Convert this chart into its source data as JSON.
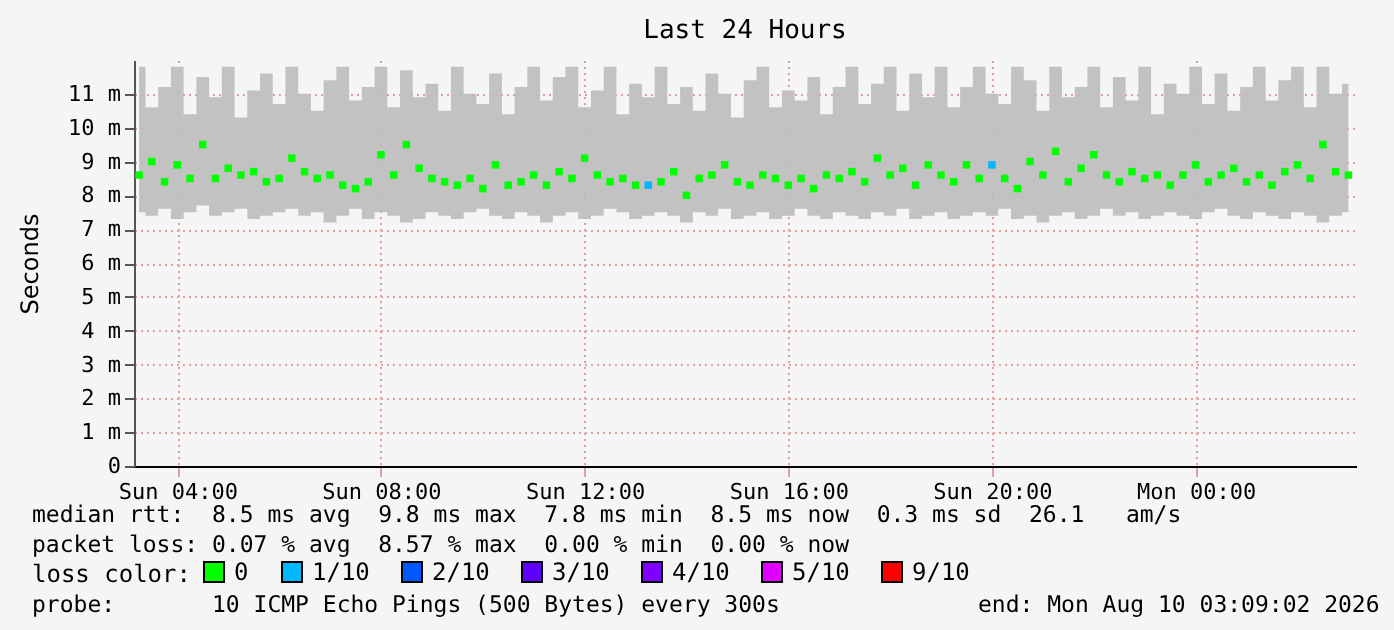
{
  "chart_data": {
    "type": "scatter",
    "title": "Last 24 Hours",
    "ylabel": "Seconds",
    "legend_title": "loss color:",
    "legend": "bottom",
    "grid": true,
    "marker": "square",
    "xlim": [
      "2026-08-09T03:09",
      "2026-08-10T03:09"
    ],
    "xticks": [
      {
        "value": "2026-08-09T04:00",
        "label": "Sun 04:00"
      },
      {
        "value": "2026-08-09T08:00",
        "label": "Sun 08:00"
      },
      {
        "value": "2026-08-09T12:00",
        "label": "Sun 12:00"
      },
      {
        "value": "2026-08-09T16:00",
        "label": "Sun 16:00"
      },
      {
        "value": "2026-08-09T20:00",
        "label": "Sun 20:00"
      },
      {
        "value": "2026-08-10T00:00",
        "label": "Mon 00:00"
      }
    ],
    "ylim": [
      0,
      12
    ],
    "yticks": [
      0,
      {
        "value": 1,
        "label": "1 m"
      },
      {
        "value": 2,
        "label": "2 m"
      },
      {
        "value": 3,
        "label": "3 m"
      },
      {
        "value": 4,
        "label": "4 m"
      },
      {
        "value": 5,
        "label": "5 m"
      },
      {
        "value": 6,
        "label": "6 m"
      },
      {
        "value": 7,
        "label": "7 m"
      },
      {
        "value": 8,
        "label": "8 m"
      },
      {
        "value": 9,
        "label": "9 m"
      },
      {
        "value": 10,
        "label": "10 m"
      },
      {
        "value": 11,
        "label": "11 m"
      }
    ],
    "x": [
      "2026-08-09T03:15",
      "2026-08-09T03:30",
      "2026-08-09T03:45",
      "2026-08-09T04:00",
      "2026-08-09T04:15",
      "2026-08-09T04:30",
      "2026-08-09T04:45",
      "2026-08-09T05:00",
      "2026-08-09T05:15",
      "2026-08-09T05:30",
      "2026-08-09T05:45",
      "2026-08-09T06:00",
      "2026-08-09T06:15",
      "2026-08-09T06:30",
      "2026-08-09T06:45",
      "2026-08-09T07:00",
      "2026-08-09T07:15",
      "2026-08-09T07:30",
      "2026-08-09T07:45",
      "2026-08-09T08:00",
      "2026-08-09T08:15",
      "2026-08-09T08:30",
      "2026-08-09T08:45",
      "2026-08-09T09:00",
      "2026-08-09T09:15",
      "2026-08-09T09:30",
      "2026-08-09T09:45",
      "2026-08-09T10:00",
      "2026-08-09T10:15",
      "2026-08-09T10:30",
      "2026-08-09T10:45",
      "2026-08-09T11:00",
      "2026-08-09T11:15",
      "2026-08-09T11:30",
      "2026-08-09T11:45",
      "2026-08-09T12:00",
      "2026-08-09T12:15",
      "2026-08-09T12:30",
      "2026-08-09T12:45",
      "2026-08-09T13:00",
      "2026-08-09T13:15",
      "2026-08-09T13:30",
      "2026-08-09T13:45",
      "2026-08-09T14:00",
      "2026-08-09T14:15",
      "2026-08-09T14:30",
      "2026-08-09T14:45",
      "2026-08-09T15:00",
      "2026-08-09T15:15",
      "2026-08-09T15:30",
      "2026-08-09T15:45",
      "2026-08-09T16:00",
      "2026-08-09T16:15",
      "2026-08-09T16:30",
      "2026-08-09T16:45",
      "2026-08-09T17:00",
      "2026-08-09T17:15",
      "2026-08-09T17:30",
      "2026-08-09T17:45",
      "2026-08-09T18:00",
      "2026-08-09T18:15",
      "2026-08-09T18:30",
      "2026-08-09T18:45",
      "2026-08-09T19:00",
      "2026-08-09T19:15",
      "2026-08-09T19:30",
      "2026-08-09T19:45",
      "2026-08-09T20:00",
      "2026-08-09T20:15",
      "2026-08-09T20:30",
      "2026-08-09T20:45",
      "2026-08-09T21:00",
      "2026-08-09T21:15",
      "2026-08-09T21:30",
      "2026-08-09T21:45",
      "2026-08-09T22:00",
      "2026-08-09T22:15",
      "2026-08-09T22:30",
      "2026-08-09T22:45",
      "2026-08-09T23:00",
      "2026-08-09T23:15",
      "2026-08-09T23:30",
      "2026-08-09T23:45",
      "2026-08-10T00:00",
      "2026-08-10T00:15",
      "2026-08-10T00:30",
      "2026-08-10T00:45",
      "2026-08-10T01:00",
      "2026-08-10T01:15",
      "2026-08-10T01:30",
      "2026-08-10T01:45",
      "2026-08-10T02:00",
      "2026-08-10T02:15",
      "2026-08-10T02:30",
      "2026-08-10T02:45",
      "2026-08-10T03:00"
    ],
    "series": [
      {
        "name": "0",
        "color": "#00ff00",
        "values": [
          8.6,
          9.0,
          8.4,
          8.9,
          8.5,
          9.5,
          8.5,
          8.8,
          8.6,
          8.7,
          8.4,
          8.5,
          9.1,
          8.7,
          8.5,
          8.6,
          8.3,
          8.2,
          8.4,
          9.2,
          8.6,
          9.5,
          8.8,
          8.5,
          8.4,
          8.3,
          8.5,
          8.2,
          8.9,
          8.3,
          8.4,
          8.6,
          8.3,
          8.7,
          8.5,
          9.1,
          8.6,
          8.4,
          8.5,
          8.3,
          null,
          8.4,
          8.7,
          8.0,
          8.5,
          8.6,
          8.9,
          8.4,
          8.3,
          8.6,
          8.5,
          8.3,
          8.5,
          8.2,
          8.6,
          8.5,
          8.7,
          8.4,
          9.1,
          8.6,
          8.8,
          8.3,
          8.9,
          8.6,
          8.4,
          8.9,
          8.5,
          null,
          8.5,
          8.2,
          9.0,
          8.6,
          9.3,
          8.4,
          8.8,
          9.2,
          8.6,
          8.4,
          8.7,
          8.5,
          8.6,
          8.3,
          8.6,
          8.9,
          8.4,
          8.6,
          8.8,
          8.4,
          8.6,
          8.3,
          8.7,
          8.9,
          8.5,
          9.5,
          8.7,
          8.6
        ],
        "lower": [
          7.5,
          7.4,
          7.6,
          7.3,
          7.5,
          7.7,
          7.4,
          7.5,
          7.6,
          7.3,
          7.4,
          7.5,
          7.6,
          7.4,
          7.5,
          7.2,
          7.4,
          7.6,
          7.3,
          7.5,
          7.4,
          7.2,
          7.3,
          7.5,
          7.4,
          7.3,
          7.5,
          7.6,
          7.4,
          7.3,
          7.5,
          7.4,
          7.2,
          7.4,
          7.5,
          7.3,
          7.4,
          7.6,
          7.5,
          7.3,
          7.4,
          7.5,
          7.4,
          7.2,
          7.5,
          7.4,
          7.6,
          7.3,
          7.4,
          7.5,
          7.3,
          7.4,
          7.6,
          7.4,
          7.3,
          7.5,
          7.4,
          7.3,
          7.5,
          7.4,
          7.6,
          7.3,
          7.4,
          7.5,
          7.3,
          7.4,
          7.5,
          7.4,
          7.6,
          7.3,
          7.4,
          7.2,
          7.4,
          7.5,
          7.3,
          7.4,
          7.6,
          7.4,
          7.5,
          7.3,
          7.4,
          7.5,
          7.4,
          7.3,
          7.5,
          7.6,
          7.4,
          7.3,
          7.5,
          7.4,
          7.3,
          7.5,
          7.4,
          7.2,
          7.4,
          7.5
        ],
        "upper": [
          11.8,
          10.6,
          11.2,
          11.8,
          10.4,
          11.5,
          10.9,
          11.8,
          10.3,
          11.1,
          11.6,
          10.7,
          11.8,
          11.0,
          10.5,
          11.4,
          11.8,
          10.8,
          11.2,
          11.8,
          10.6,
          11.7,
          10.9,
          11.3,
          10.5,
          11.8,
          11.0,
          10.7,
          11.6,
          10.4,
          11.2,
          11.8,
          10.8,
          11.5,
          11.8,
          10.6,
          11.1,
          11.8,
          10.4,
          11.3,
          10.9,
          11.8,
          10.7,
          11.2,
          10.5,
          11.6,
          11.0,
          10.3,
          11.4,
          11.8,
          10.6,
          11.1,
          10.8,
          11.5,
          10.4,
          11.2,
          11.8,
          10.7,
          11.3,
          11.8,
          10.5,
          11.6,
          10.9,
          11.8,
          10.6,
          11.2,
          11.8,
          11.0,
          10.7,
          11.8,
          11.4,
          10.5,
          11.8,
          10.9,
          11.2,
          11.8,
          10.6,
          11.5,
          10.8,
          11.8,
          10.4,
          11.3,
          11.0,
          11.8,
          10.7,
          11.6,
          10.5,
          11.2,
          11.8,
          10.8,
          11.4,
          11.8,
          10.6,
          11.8,
          11.0,
          11.3
        ]
      },
      {
        "name": "1/10",
        "color": "#00b8ff",
        "x": [
          "2026-08-09T13:15",
          "2026-08-09T20:00"
        ],
        "values": [
          8.3,
          8.9
        ]
      },
      {
        "name": "2/10",
        "color": "#0059ff",
        "values": [
          null,
          null,
          null,
          null,
          null,
          null,
          null,
          null,
          null,
          null,
          null,
          null,
          null,
          null,
          null,
          null,
          null,
          null,
          null,
          null,
          null,
          null,
          null,
          null,
          null,
          null,
          null,
          null,
          null,
          null,
          null,
          null,
          null,
          null,
          null,
          null,
          null,
          null,
          null,
          null,
          null,
          null,
          null,
          null,
          null,
          null,
          null,
          null,
          null,
          null,
          null,
          null,
          null,
          null,
          null,
          null,
          null,
          null,
          null,
          null,
          null,
          null,
          null,
          null,
          null,
          null,
          null,
          null,
          null,
          null,
          null,
          null,
          null,
          null,
          null,
          null,
          null,
          null,
          null,
          null,
          null,
          null,
          null,
          null,
          null,
          null,
          null,
          null,
          null,
          null,
          null,
          null,
          null,
          null,
          null,
          null
        ]
      },
      {
        "name": "3/10",
        "color": "#5e00ff",
        "values": [
          null,
          null,
          null,
          null,
          null,
          null,
          null,
          null,
          null,
          null,
          null,
          null,
          null,
          null,
          null,
          null,
          null,
          null,
          null,
          null,
          null,
          null,
          null,
          null,
          null,
          null,
          null,
          null,
          null,
          null,
          null,
          null,
          null,
          null,
          null,
          null,
          null,
          null,
          null,
          null,
          null,
          null,
          null,
          null,
          null,
          null,
          null,
          null,
          null,
          null,
          null,
          null,
          null,
          null,
          null,
          null,
          null,
          null,
          null,
          null,
          null,
          null,
          null,
          null,
          null,
          null,
          null,
          null,
          null,
          null,
          null,
          null,
          null,
          null,
          null,
          null,
          null,
          null,
          null,
          null,
          null,
          null,
          null,
          null,
          null,
          null,
          null,
          null,
          null,
          null,
          null,
          null,
          null,
          null,
          null,
          null
        ]
      },
      {
        "name": "4/10",
        "color": "#7e00ff",
        "values": [
          null,
          null,
          null,
          null,
          null,
          null,
          null,
          null,
          null,
          null,
          null,
          null,
          null,
          null,
          null,
          null,
          null,
          null,
          null,
          null,
          null,
          null,
          null,
          null,
          null,
          null,
          null,
          null,
          null,
          null,
          null,
          null,
          null,
          null,
          null,
          null,
          null,
          null,
          null,
          null,
          null,
          null,
          null,
          null,
          null,
          null,
          null,
          null,
          null,
          null,
          null,
          null,
          null,
          null,
          null,
          null,
          null,
          null,
          null,
          null,
          null,
          null,
          null,
          null,
          null,
          null,
          null,
          null,
          null,
          null,
          null,
          null,
          null,
          null,
          null,
          null,
          null,
          null,
          null,
          null,
          null,
          null,
          null,
          null,
          null,
          null,
          null,
          null,
          null,
          null,
          null,
          null,
          null,
          null,
          null,
          null
        ]
      },
      {
        "name": "5/10",
        "color": "#dd00ff",
        "values": [
          null,
          null,
          null,
          null,
          null,
          null,
          null,
          null,
          null,
          null,
          null,
          null,
          null,
          null,
          null,
          null,
          null,
          null,
          null,
          null,
          null,
          null,
          null,
          null,
          null,
          null,
          null,
          null,
          null,
          null,
          null,
          null,
          null,
          null,
          null,
          null,
          null,
          null,
          null,
          null,
          null,
          null,
          null,
          null,
          null,
          null,
          null,
          null,
          null,
          null,
          null,
          null,
          null,
          null,
          null,
          null,
          null,
          null,
          null,
          null,
          null,
          null,
          null,
          null,
          null,
          null,
          null,
          null,
          null,
          null,
          null,
          null,
          null,
          null,
          null,
          null,
          null,
          null,
          null,
          null,
          null,
          null,
          null,
          null,
          null,
          null,
          null,
          null,
          null,
          null,
          null,
          null,
          null,
          null,
          null,
          null
        ]
      },
      {
        "name": "9/10",
        "color": "#ff0000",
        "values": [
          null,
          null,
          null,
          null,
          null,
          null,
          null,
          null,
          null,
          null,
          null,
          null,
          null,
          null,
          null,
          null,
          null,
          null,
          null,
          null,
          null,
          null,
          null,
          null,
          null,
          null,
          null,
          null,
          null,
          null,
          null,
          null,
          null,
          null,
          null,
          null,
          null,
          null,
          null,
          null,
          null,
          null,
          null,
          null,
          null,
          null,
          null,
          null,
          null,
          null,
          null,
          null,
          null,
          null,
          null,
          null,
          null,
          null,
          null,
          null,
          null,
          null,
          null,
          null,
          null,
          null,
          null,
          null,
          null,
          null,
          null,
          null,
          null,
          null,
          null,
          null,
          null,
          null,
          null,
          null,
          null,
          null,
          null,
          null,
          null,
          null,
          null,
          null,
          null,
          null,
          null,
          null,
          null,
          null,
          null,
          null
        ]
      }
    ],
    "annotations": [
      "median rtt:  8.5 ms avg  9.8 ms max  7.8 ms min  8.5 ms now  0.3 ms sd  26.1   am/s",
      "packet loss: 0.07 % avg  8.57 % max  0.00 % min  0.00 % now",
      "probe:       10 ICMP Echo Pings (500 Bytes) every 300s",
      "end: Mon Aug 10 03:09:02 2026"
    ]
  }
}
